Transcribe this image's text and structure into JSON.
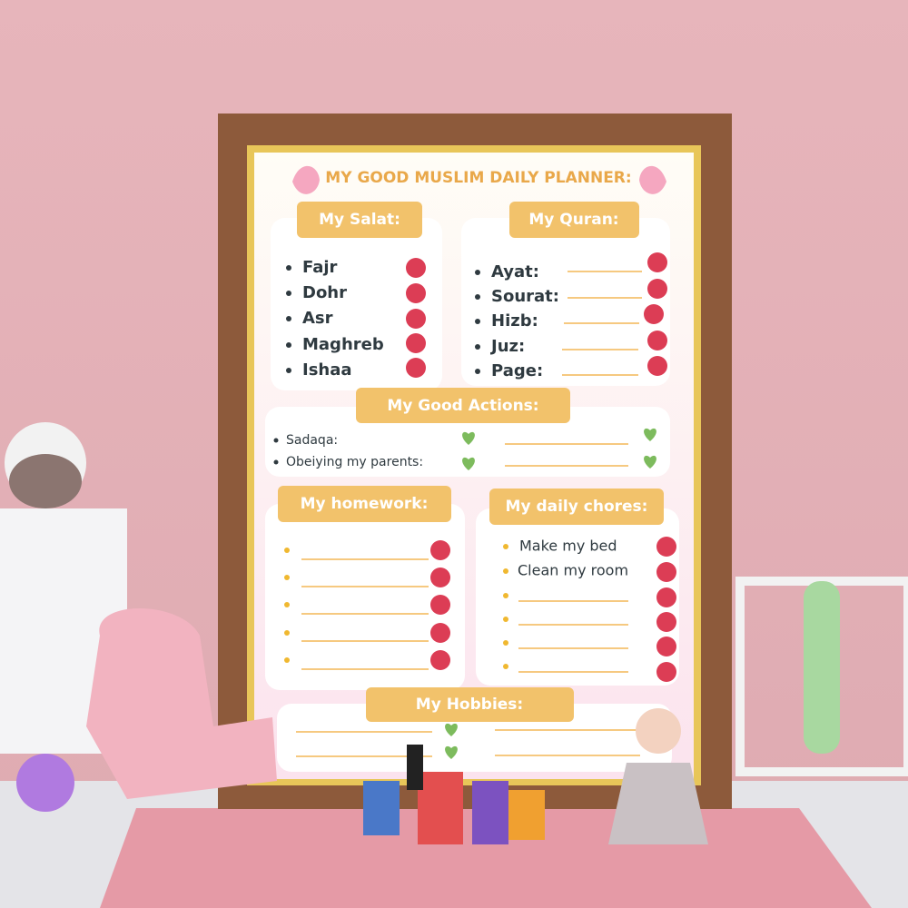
{
  "title": "MY GOOD MUSLIM DAILY PLANNER:",
  "sections": {
    "salat": {
      "heading": "My Salat:",
      "items": [
        "Fajr",
        "Dohr",
        "Asr",
        "Maghreb",
        "Ishaa"
      ]
    },
    "quran": {
      "heading": "My Quran:",
      "items": [
        "Ayat:",
        "Sourat:",
        "Hizb:",
        "Juz:",
        "Page:"
      ]
    },
    "good_actions": {
      "heading": "My Good Actions:",
      "items": [
        "Sadaqa:",
        "Obeiying my parents:"
      ]
    },
    "homework": {
      "heading": "My homework:"
    },
    "chores": {
      "heading": "My daily chores:",
      "items": [
        "Make my bed",
        "Clean my room"
      ]
    },
    "hobbies": {
      "heading": "My Hobbies:"
    }
  }
}
